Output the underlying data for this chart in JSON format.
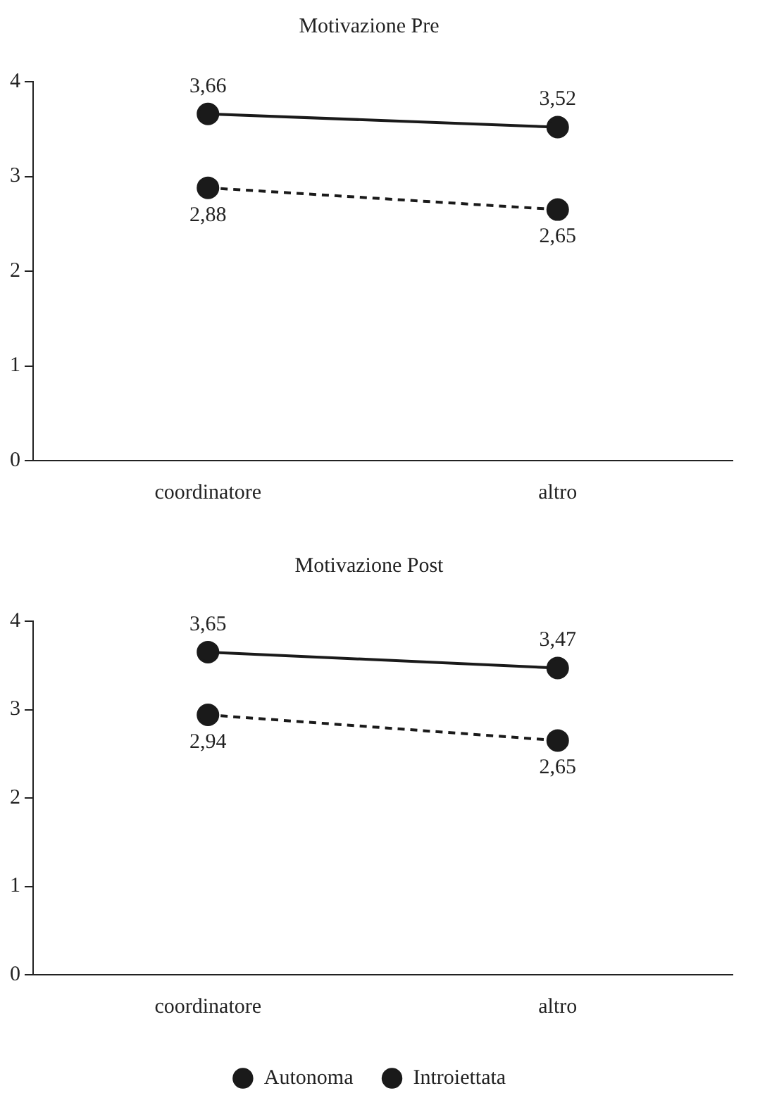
{
  "chart_data": [
    {
      "type": "line",
      "title": "Motivazione Pre",
      "categories": [
        "coordinatore",
        "altro"
      ],
      "ylim": [
        0,
        4
      ],
      "yticks": [
        0,
        1,
        2,
        3,
        4
      ],
      "grid": false,
      "legend": false,
      "marker": "circle",
      "series": [
        {
          "color": "#1a1a1a",
          "line_style": "solid",
          "values": [
            3.66,
            3.52
          ],
          "value_labels": [
            "3,66",
            "3,52"
          ]
        },
        {
          "color": "#1a1a1a",
          "line_style": "dashed",
          "values": [
            2.88,
            2.65
          ],
          "value_labels": [
            "2,88",
            "2,65"
          ]
        }
      ]
    },
    {
      "type": "line",
      "title": "Motivazione Post",
      "categories": [
        "coordinatore",
        "altro"
      ],
      "ylim": [
        0,
        4
      ],
      "yticks": [
        0,
        1,
        2,
        3,
        4
      ],
      "grid": false,
      "legend": "bottom",
      "marker": "circle",
      "series": [
        {
          "name": "Autonoma",
          "color": "#1a1a1a",
          "line_style": "solid",
          "values": [
            3.65,
            3.47
          ],
          "value_labels": [
            "3,65",
            "3,47"
          ]
        },
        {
          "name": "Introiettata",
          "color": "#1a1a1a",
          "line_style": "dashed",
          "values": [
            2.94,
            2.65
          ],
          "value_labels": [
            "2,94",
            "2,65"
          ]
        }
      ]
    }
  ]
}
